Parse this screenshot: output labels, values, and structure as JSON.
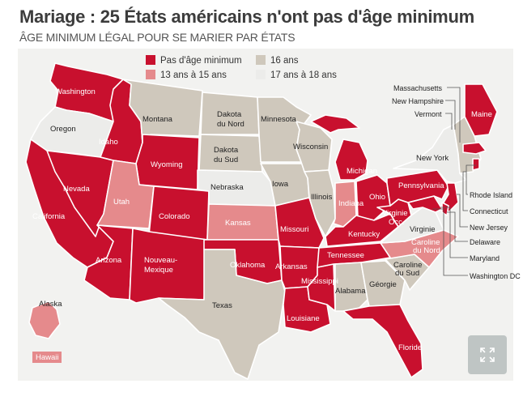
{
  "title": "Mariage : 25 États américains n'ont pas d'âge minimum",
  "subtitle": "ÂGE MINIMUM LÉGAL POUR SE MARIER PAR ÉTATS",
  "colors": {
    "none": "#c8102e",
    "13_15": "#e58a8c",
    "16": "#cfc8bc",
    "17_18": "#ececea",
    "background": "#f2f2f0"
  },
  "legend": [
    {
      "key": "none",
      "label": "Pas d'âge minimum"
    },
    {
      "key": "16",
      "label": "16 ans"
    },
    {
      "key": "13_15",
      "label": "13 ans à 15 ans"
    },
    {
      "key": "17_18",
      "label": "17 ans à 18 ans"
    }
  ],
  "states": {
    "Washington": "none",
    "Oregon": "17_18",
    "California": "none",
    "Nevada": "none",
    "Idaho": "none",
    "Montana": "16",
    "Wyoming": "none",
    "Utah": "13_15",
    "Arizona": "none",
    "Colorado": "none",
    "New Mexico": "none",
    "North Dakota": "16",
    "South Dakota": "16",
    "Nebraska": "17_18",
    "Kansas": "13_15",
    "Oklahoma": "none",
    "Texas": "16",
    "Minnesota": "16",
    "Iowa": "16",
    "Missouri": "none",
    "Arkansas": "none",
    "Louisiana": "none",
    "Wisconsin": "16",
    "Illinois": "16",
    "Mississippi": "none",
    "Michigan": "none",
    "Indiana": "13_15",
    "Kentucky": "none",
    "Tennessee": "none",
    "Alabama": "16",
    "Ohio": "none",
    "West Virginia": "none",
    "Georgia": "16",
    "Florida": "none",
    "South Carolina": "16",
    "North Carolina": "13_15",
    "Virginia": "17_18",
    "Pennsylvania": "none",
    "New York": "17_18",
    "Maine": "none",
    "New England": "16",
    "Alaska": "13_15",
    "Hawaii": "13_15"
  },
  "labels": {
    "washington": "Washington",
    "oregon": "Oregon",
    "california": "California",
    "nevada": "Nevada",
    "idaho": "Idaho",
    "montana": "Montana",
    "wyoming": "Wyoming",
    "utah": "Utah",
    "arizona": "Arizona",
    "colorado": "Colorado",
    "nouveau_mexique_1": "Nouveau-",
    "nouveau_mexique_2": "Mexique",
    "dakota_nord_1": "Dakota",
    "dakota_nord_2": "du Nord",
    "dakota_sud_1": "Dakota",
    "dakota_sud_2": "du Sud",
    "nebraska": "Nebraska",
    "kansas": "Kansas",
    "oklahoma": "Oklahoma",
    "texas": "Texas",
    "minnesota": "Minnesota",
    "iowa": "Iowa",
    "missouri": "Missouri",
    "arkansas": "Arkansas",
    "louisiane": "Louisiane",
    "wisconsin": "Wisconsin",
    "illinois": "Illinois",
    "mississippi": "Mississippi",
    "michigan": "Michigan",
    "indiana": "Indiana",
    "kentucky": "Kentucky",
    "tennessee": "Tennessee",
    "alabama": "Alabama",
    "ohio": "Ohio",
    "virginie_occ_1": "Virginie",
    "virginie_occ_2": "Occ.",
    "georgie": "Géorgie",
    "floride": "Floride",
    "caroline_sud_1": "Caroline",
    "caroline_sud_2": "du Sud",
    "caroline_nord_1": "Caroline",
    "caroline_nord_2": "du Nord",
    "virginia": "Virginie",
    "pennsylvania": "Pennsylvania",
    "new_york": "New York",
    "maine": "Maine",
    "alaska": "Alaska",
    "hawaii": "Hawaii"
  },
  "callouts_left": [
    "Massachusetts",
    "New Hampshire",
    "Vermont"
  ],
  "callouts_right": [
    "Rhode Island",
    "Connecticut",
    "New Jersey",
    "Delaware",
    "Maryland",
    "Washington DC"
  ]
}
